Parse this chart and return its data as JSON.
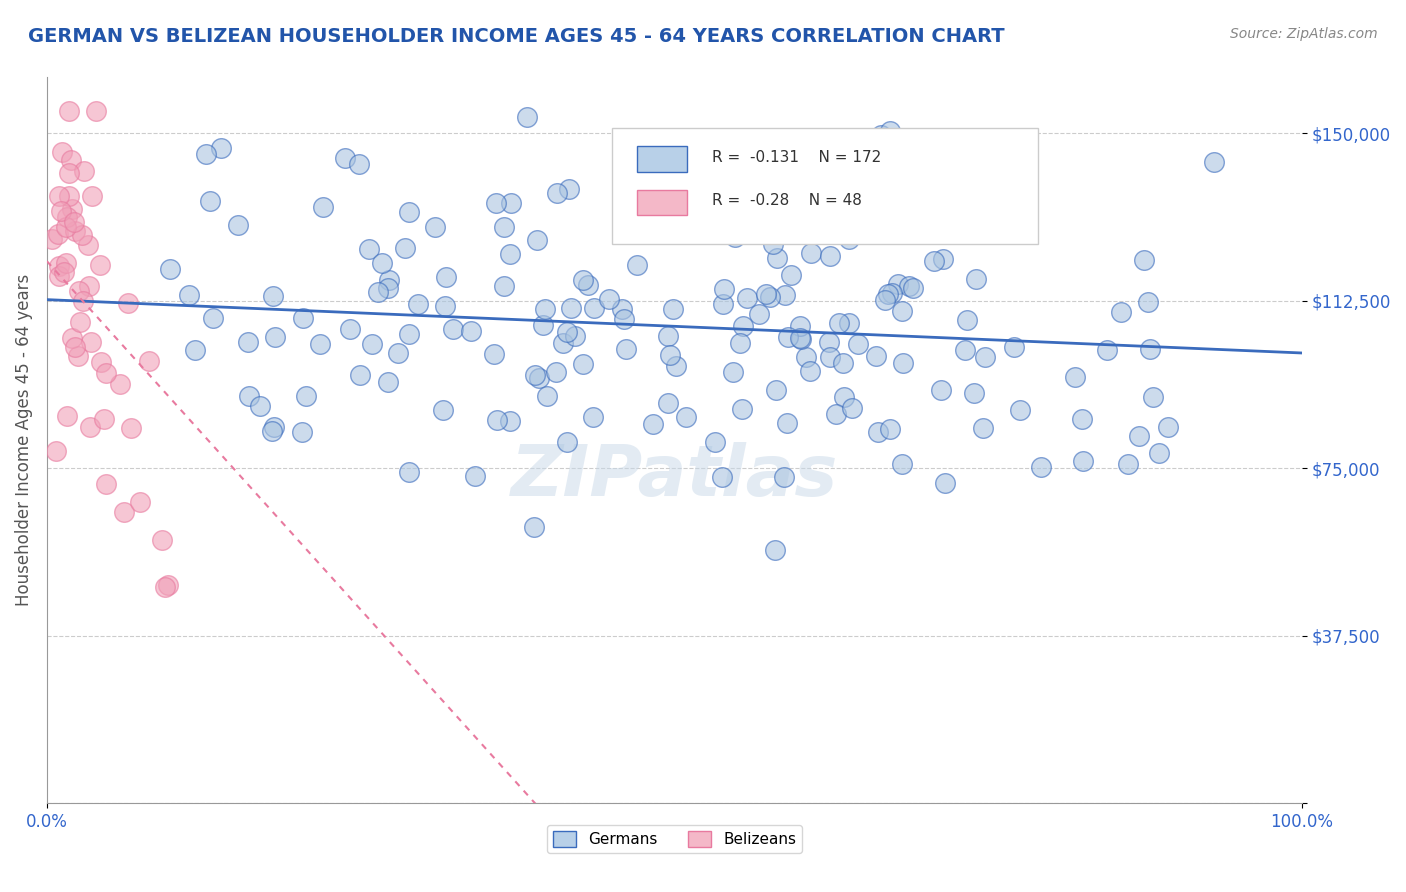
{
  "title": "GERMAN VS BELIZEAN HOUSEHOLDER INCOME AGES 45 - 64 YEARS CORRELATION CHART",
  "source": "Source: ZipAtlas.com",
  "xlabel": "",
  "ylabel": "Householder Income Ages 45 - 64 years",
  "xlim": [
    0.0,
    1.0
  ],
  "ylim": [
    0,
    162500
  ],
  "yticks": [
    0,
    37500,
    75000,
    112500,
    150000
  ],
  "ytick_labels": [
    "",
    "$37,500",
    "$75,000",
    "$112,500",
    "$150,000"
  ],
  "xtick_labels": [
    "0.0%",
    "100.0%"
  ],
  "german_R": -0.131,
  "german_N": 172,
  "belizean_R": -0.28,
  "belizean_N": 48,
  "german_color": "#a8c4e0",
  "belizean_color": "#f4a7b9",
  "german_line_color": "#3a6bbd",
  "belizean_line_color": "#e87a9f",
  "german_scatter_color": "#aac4e0",
  "belizean_scatter_color": "#f0a0b8",
  "legend_box_german": "#b8d0e8",
  "legend_box_belizean": "#f4b8c8",
  "watermark": "ZIPatlas",
  "background_color": "#ffffff",
  "grid_color": "#cccccc",
  "title_color": "#2255aa",
  "axis_label_color": "#555555",
  "tick_label_color": "#3366cc"
}
